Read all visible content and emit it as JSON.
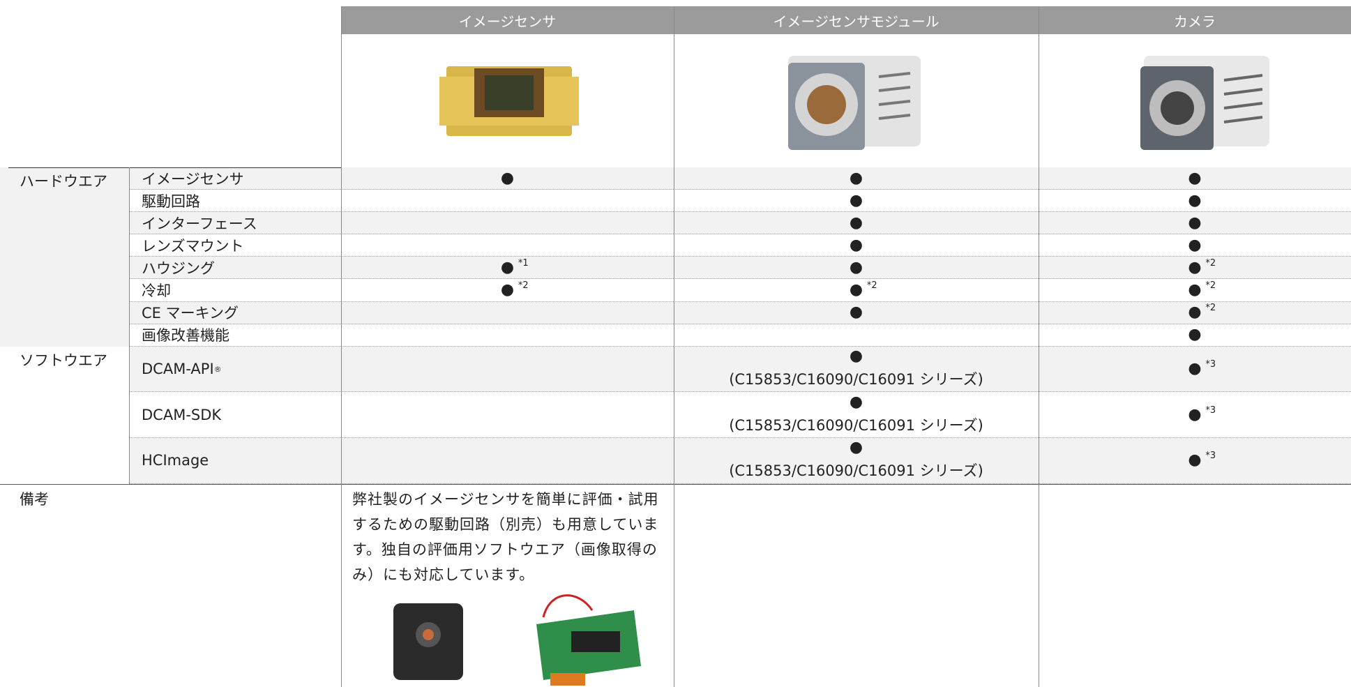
{
  "header": {
    "columns": [
      "イメージセンサ",
      "イメージセンサモジュール",
      "カメラ"
    ]
  },
  "groups": [
    {
      "label": "ハードウエア",
      "rows": [
        {
          "item": "イメージセンサ",
          "cells": [
            {
              "mark": "●"
            },
            {
              "mark": "●"
            },
            {
              "mark": "●"
            }
          ]
        },
        {
          "item": "駆動回路",
          "cells": [
            null,
            {
              "mark": "●"
            },
            {
              "mark": "●"
            }
          ]
        },
        {
          "item": "インターフェース",
          "cells": [
            null,
            {
              "mark": "●"
            },
            {
              "mark": "●"
            }
          ]
        },
        {
          "item": "レンズマウント",
          "cells": [
            null,
            {
              "mark": "●"
            },
            {
              "mark": "●"
            }
          ]
        },
        {
          "item": "ハウジング",
          "cells": [
            {
              "mark": "●",
              "note": "*1"
            },
            {
              "mark": "●"
            },
            {
              "mark": "●",
              "note": "*2"
            }
          ]
        },
        {
          "item": "冷却",
          "cells": [
            {
              "mark": "●",
              "note": "*2"
            },
            {
              "mark": "●",
              "note": "*2"
            },
            {
              "mark": "●",
              "note": "*2"
            }
          ]
        },
        {
          "item": "CE マーキング",
          "cells": [
            null,
            {
              "mark": "●"
            },
            {
              "mark": "●",
              "note": "*2"
            }
          ]
        },
        {
          "item": "画像改善機能",
          "cells": [
            null,
            null,
            {
              "mark": "●"
            }
          ]
        }
      ]
    },
    {
      "label": "ソフトウエア",
      "rows": [
        {
          "item": "DCAM-API",
          "item_mark": "®",
          "cells": [
            null,
            {
              "mark": "●",
              "text": "(C15853/C16090/C16091 シリーズ)"
            },
            {
              "mark": "●",
              "note": "*3"
            }
          ]
        },
        {
          "item": "DCAM-SDK",
          "cells": [
            null,
            {
              "mark": "●",
              "text": "(C15853/C16090/C16091 シリーズ)"
            },
            {
              "mark": "●",
              "note": "*3"
            }
          ]
        },
        {
          "item": "HCImage",
          "cells": [
            null,
            {
              "mark": "●",
              "text": "(C15853/C16090/C16091 シリーズ)"
            },
            {
              "mark": "●",
              "note": "*3"
            }
          ]
        }
      ]
    }
  ],
  "remarks": {
    "label": "備考",
    "text": "弊社製のイメージセンサを簡単に評価・試用するための駆動回路（別売）も用意しています。独自の評価用ソフトウエア（画像取得のみ）にも対応しています。"
  }
}
